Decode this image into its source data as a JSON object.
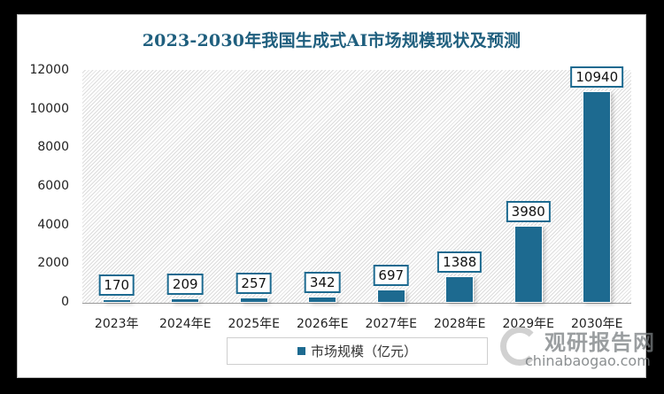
{
  "chart_data": {
    "type": "bar",
    "title": "2023-2030年我国生成式AI市场规模现状及预测",
    "categories": [
      "2023年",
      "2024年E",
      "2025年E",
      "2026年E",
      "2027年E",
      "2028年E",
      "2029年E",
      "2030年E"
    ],
    "series": [
      {
        "name": "市场规模（亿元）",
        "values": [
          170,
          209,
          257,
          342,
          697,
          1388,
          3980,
          10940
        ],
        "color": "#1d6a90"
      }
    ],
    "data_labels": [
      "170",
      "209",
      "257",
      "342",
      "697",
      "1388",
      "3980",
      "10940"
    ],
    "xlabel": "",
    "ylabel": "",
    "ylim": [
      0,
      12000
    ],
    "yticks": [
      "0",
      "2000",
      "4000",
      "6000",
      "8000",
      "10000",
      "12000"
    ],
    "grid": false,
    "legend_position": "bottom"
  },
  "legend": {
    "label": "市场规模（亿元）"
  },
  "watermark": {
    "cn": "观研报告网",
    "en": "chinabaogao.com"
  }
}
